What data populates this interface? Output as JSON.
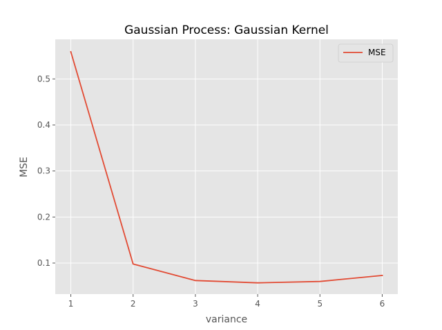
{
  "chart_data": {
    "type": "line",
    "title": "Gaussian Process: Gaussian Kernel",
    "xlabel": "variance",
    "ylabel": "MSE",
    "x": [
      1,
      2,
      3,
      4,
      5,
      6
    ],
    "xticks": [
      "1",
      "2",
      "3",
      "4",
      "5",
      "6"
    ],
    "yticks": [
      "0.1",
      "0.2",
      "0.3",
      "0.4",
      "0.5"
    ],
    "ytick_values": [
      0.1,
      0.2,
      0.3,
      0.4,
      0.5
    ],
    "xlim": [
      0.75,
      6.25
    ],
    "ylim": [
      0.0325,
      0.586
    ],
    "grid": true,
    "legend_position": "top-right",
    "series": [
      {
        "name": "MSE",
        "values": [
          0.559,
          0.098,
          0.062,
          0.057,
          0.06,
          0.073
        ],
        "color": "#e24a33"
      }
    ]
  },
  "colors": {
    "plot_background": "#e5e5e5",
    "grid": "#ffffff",
    "tick_color": "#555555"
  }
}
